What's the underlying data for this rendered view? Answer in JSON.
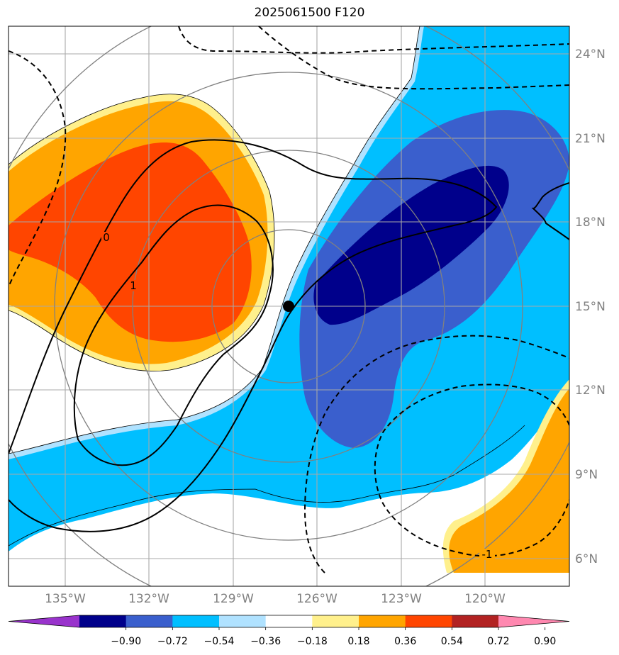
{
  "title": "2025061500 F120",
  "map": {
    "lon_labels": [
      "135°W",
      "132°W",
      "129°W",
      "126°W",
      "123°W",
      "120°W"
    ],
    "lat_labels": [
      "24°N",
      "21°N",
      "18°N",
      "15°N",
      "12°N",
      "9°N",
      "6°N"
    ],
    "contour_labels": [
      "0",
      "1",
      "-1"
    ],
    "storm_center": {
      "lon": "127°W",
      "lat": "15°N"
    }
  },
  "colorbar": {
    "ticks": [
      "−0.90",
      "−0.72",
      "−0.54",
      "−0.36",
      "−0.18",
      "0.18",
      "0.36",
      "0.54",
      "0.72",
      "0.90"
    ],
    "colors": [
      "#9933cc",
      "#00008b",
      "#3a5fcd",
      "#00bfff",
      "#b0e2ff",
      "#ffffff",
      "#fff08c",
      "#ffa500",
      "#ff4500",
      "#b22222",
      "#ff88b0"
    ]
  }
}
